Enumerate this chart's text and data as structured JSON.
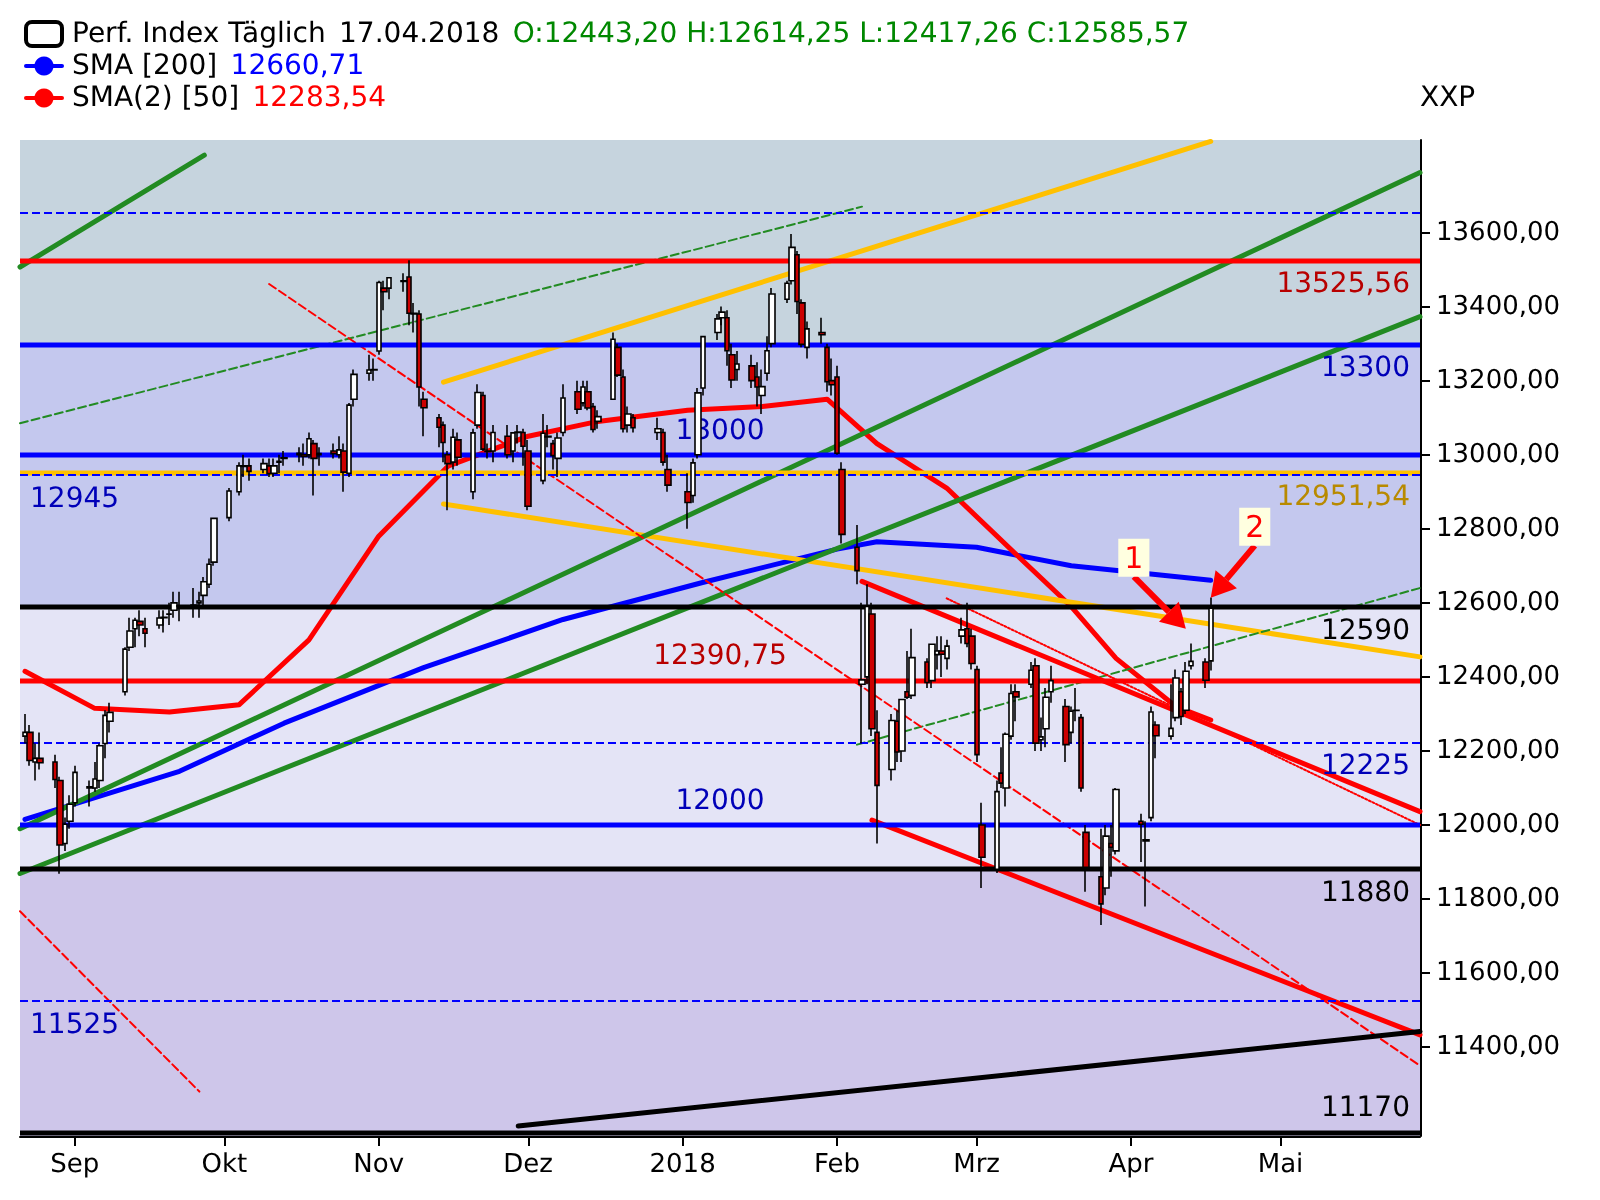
{
  "chart_data": {
    "type": "candlestick",
    "ylabel": "XXP",
    "legend": "top left",
    "annotations": [
      "17.04.2018",
      "O:12443,20 H:12614,25 L:12417,26 C:12585,57",
      "12660,71",
      "12283,54",
      {
        "text": "1",
        "x": "2018-04-12",
        "y": 12530
      },
      {
        "text": "2",
        "x": "2018-04-17",
        "y": 12614
      }
    ],
    "xlim": [
      "2017-08-21",
      "2018-05-29"
    ],
    "xticks": [
      {
        "value": "2017-09-01",
        "label": "Sep"
      },
      {
        "value": "2017-10-01",
        "label": "Okt"
      },
      {
        "value": "2017-11-01",
        "label": "Nov"
      },
      {
        "value": "2017-12-01",
        "label": "Dez"
      },
      {
        "value": "2018-01-01",
        "label": "2018"
      },
      {
        "value": "2018-02-01",
        "label": "Feb"
      },
      {
        "value": "2018-03-01",
        "label": "Mrz"
      },
      {
        "value": "2018-04-01",
        "label": "Apr"
      },
      {
        "value": "2018-05-01",
        "label": "Mai"
      }
    ],
    "ylim": [
      11160,
      13850
    ],
    "yticks": [
      {
        "value": 11400,
        "label": "11400,00"
      },
      {
        "value": 11600,
        "label": "11600,00"
      },
      {
        "value": 11800,
        "label": "11800,00"
      },
      {
        "value": 12000,
        "label": "12000,00"
      },
      {
        "value": 12200,
        "label": "12200,00"
      },
      {
        "value": 12400,
        "label": "12400,00"
      },
      {
        "value": 12600,
        "label": "12600,00"
      },
      {
        "value": 12800,
        "label": "12800,00"
      },
      {
        "value": 13000,
        "label": "13000,00"
      },
      {
        "value": 13200,
        "label": "13200,00"
      },
      {
        "value": 13400,
        "label": "13400,00"
      },
      {
        "value": 13600,
        "label": "13600,00"
      }
    ],
    "bands": [
      {
        "axis": "y",
        "from": 13300,
        "to": 13850,
        "color": "#c6d4de"
      },
      {
        "axis": "y",
        "from": 12590,
        "to": 13300,
        "color": "#c4c8ee"
      },
      {
        "axis": "y",
        "from": 11880,
        "to": 12590,
        "color": "#e4e4f6"
      },
      {
        "axis": "y",
        "from": 11160,
        "to": 11880,
        "color": "#cec6ea"
      }
    ],
    "ref_lines": [
      {
        "axis": "y",
        "value": 13655,
        "label": null,
        "color": "#0000ff",
        "line_style": "dashed"
      },
      {
        "axis": "y",
        "value": 13525.56,
        "label": "13525,56",
        "color": "#ff0000",
        "line_style": "solid"
      },
      {
        "axis": "y",
        "value": 13300,
        "label": "13300",
        "color": "#0000ff",
        "line_style": "solid"
      },
      {
        "axis": "y",
        "value": 13000,
        "label": "13000",
        "color": "#0000ff",
        "line_style": "solid"
      },
      {
        "axis": "y",
        "value": 12951.54,
        "label": "12951,54",
        "color": "#ffc000",
        "line_style": "solid"
      },
      {
        "axis": "y",
        "value": 12945,
        "label": "12945",
        "color": "#0000ff",
        "line_style": "dashed"
      },
      {
        "axis": "y",
        "value": 12590,
        "label": "12590",
        "color": "#000000",
        "line_style": "solid"
      },
      {
        "axis": "y",
        "value": 12390.75,
        "label": "12390,75",
        "color": "#ff0000",
        "line_style": "solid"
      },
      {
        "axis": "y",
        "value": 12225,
        "label": "12225",
        "color": "#0000ff",
        "line_style": "dashed"
      },
      {
        "axis": "y",
        "value": 12000,
        "label": "12000",
        "color": "#0000ff",
        "line_style": "solid"
      },
      {
        "axis": "y",
        "value": 11880,
        "label": "11880",
        "color": "#000000",
        "line_style": "solid"
      },
      {
        "axis": "y",
        "value": 11525,
        "label": "11525",
        "color": "#0000ff",
        "line_style": "dashed"
      },
      {
        "axis": "y",
        "value": 11170,
        "label": "11170",
        "color": "#000000",
        "line_style": "solid"
      }
    ],
    "series": [
      {
        "type": "candlestick",
        "name": "Perf. Index Täglich",
        "colors": [
          "#ffffff",
          "#cc0000",
          "#ffffff",
          "#cc0000",
          "#cc0000",
          "#cc0000",
          "#ffffff",
          "#ffffff",
          "#ffffff",
          "#ffffff",
          "#ffffff",
          "#ffffff",
          "#ffffff",
          "#ffffff",
          "#ffffff",
          "#ffffff",
          "#ffffff",
          "#cc0000",
          "#cc0000",
          "#ffffff",
          "#ffffff",
          "#cc0000",
          "#ffffff",
          "#ffffff",
          "#ffffff",
          "#ffffff",
          "#ffffff",
          "#ffffff",
          "#ffffff",
          "#ffffff",
          "#ffffff",
          "#cc0000",
          "#cc0000",
          "#ffffff",
          "#cc0000",
          "#ffffff",
          "#ffffff",
          "#ffffff",
          "#ffffff",
          "#cc0000",
          "#ffffff",
          "#cc0000",
          "#ffffff",
          "#cc0000",
          "#ffffff",
          "#cc0000",
          "#ffffff",
          "#ffffff",
          "#ffffff",
          "#cc0000",
          "#ffffff",
          "#cc0000",
          "#ffffff",
          "#cc0000",
          "#cc0000",
          "#ffffff",
          "#cc0000",
          "#cc0000",
          "#cc0000",
          "#cc0000",
          "#cc0000",
          "#ffffff",
          "#cc0000",
          "#ffffff",
          "#ffffff",
          "#cc0000",
          "#cc0000",
          "#ffffff",
          "#cc0000",
          "#ffffff",
          "#ffffff",
          "#cc0000",
          "#cc0000",
          "#ffffff",
          "#cc0000",
          "#cc0000",
          "#ffffff",
          "#ffffff",
          "#cc0000",
          "#ffffff",
          "#cc0000",
          "#cc0000",
          "#ffffff",
          "#ffffff",
          "#cc0000",
          "#cc0000",
          "#ffffff",
          "#cc0000",
          "#ffffff",
          "#cc0000",
          "#cc0000",
          "#cc0000",
          "#ffffff",
          "#ffffff",
          "#ffffff",
          "#ffffff",
          "#ffffff",
          "#cc0000",
          "#cc0000",
          "#ffffff",
          "#cc0000",
          "#cc0000",
          "#ffffff",
          "#ffffff",
          "#ffffff",
          "#ffffff",
          "#ffffff",
          "#cc0000",
          "#cc0000",
          "#ffffff",
          "#cc0000",
          "#cc0000",
          "#cc0000",
          "#cc0000",
          "#cc0000",
          "#cc0000",
          "#ffffff",
          "#ffffff",
          "#cc0000",
          "#cc0000",
          "#ffffff",
          "#cc0000",
          "#ffffff",
          "#cc0000",
          "#ffffff",
          "#cc0000",
          "#ffffff",
          "#ffffff",
          "#cc0000",
          "#ffffff",
          "#ffffff",
          "#cc0000",
          "#cc0000",
          "#cc0000",
          "#cc0000",
          "#ffffff",
          "#cc0000",
          "#ffffff",
          "#ffffff",
          "#cc0000",
          "#ffffff",
          "#cc0000",
          "#ffffff",
          "#ffffff",
          "#ffffff",
          "#cc0000",
          "#ffffff",
          "#cc0000",
          "#cc0000",
          "#cc0000",
          "#cc0000",
          "#ffffff",
          "#cc0000",
          "#ffffff",
          "#cc0000",
          "#cc0000",
          "#ffffff",
          "#cc0000",
          "#ffffff",
          "#ffffff",
          "#cc0000",
          "#ffffff",
          "#ffffff",
          "#cc0000",
          "#ffffff"
        ],
        "x": [
          "2017-08-22",
          "2017-08-23",
          "2017-08-24",
          "2017-08-25",
          "2017-08-28",
          "2017-08-29",
          "2017-08-30",
          "2017-08-31",
          "2017-09-01",
          "2017-09-04",
          "2017-09-05",
          "2017-09-06",
          "2017-09-07",
          "2017-09-08",
          "2017-09-11",
          "2017-09-12",
          "2017-09-13",
          "2017-09-14",
          "2017-09-15",
          "2017-09-18",
          "2017-09-19",
          "2017-09-20",
          "2017-09-21",
          "2017-09-22",
          "2017-09-25",
          "2017-09-26",
          "2017-09-27",
          "2017-09-28",
          "2017-09-29",
          "2017-10-02",
          "2017-10-04",
          "2017-10-05",
          "2017-10-06",
          "2017-10-09",
          "2017-10-10",
          "2017-10-11",
          "2017-10-12",
          "2017-10-13",
          "2017-10-16",
          "2017-10-17",
          "2017-10-18",
          "2017-10-19",
          "2017-10-20",
          "2017-10-23",
          "2017-10-24",
          "2017-10-25",
          "2017-10-26",
          "2017-10-27",
          "2017-10-30",
          "2017-10-31",
          "2017-11-01",
          "2017-11-02",
          "2017-11-03",
          "2017-11-06",
          "2017-11-07",
          "2017-11-08",
          "2017-11-09",
          "2017-11-10",
          "2017-11-13",
          "2017-11-14",
          "2017-11-15",
          "2017-11-16",
          "2017-11-17",
          "2017-11-20",
          "2017-11-21",
          "2017-11-22",
          "2017-11-23",
          "2017-11-24",
          "2017-11-27",
          "2017-11-28",
          "2017-11-29",
          "2017-11-30",
          "2017-12-01",
          "2017-12-04",
          "2017-12-05",
          "2017-12-06",
          "2017-12-07",
          "2017-12-08",
          "2017-12-11",
          "2017-12-12",
          "2017-12-13",
          "2017-12-14",
          "2017-12-15",
          "2017-12-18",
          "2017-12-19",
          "2017-12-20",
          "2017-12-21",
          "2017-12-22",
          "2017-12-27",
          "2017-12-28",
          "2017-12-29",
          "2018-01-02",
          "2018-01-03",
          "2018-01-04",
          "2018-01-05",
          "2018-01-08",
          "2018-01-09",
          "2018-01-10",
          "2018-01-11",
          "2018-01-12",
          "2018-01-15",
          "2018-01-16",
          "2018-01-17",
          "2018-01-18",
          "2018-01-19",
          "2018-01-22",
          "2018-01-23",
          "2018-01-24",
          "2018-01-25",
          "2018-01-26",
          "2018-01-29",
          "2018-01-30",
          "2018-01-31",
          "2018-02-01",
          "2018-02-02",
          "2018-02-05",
          "2018-02-06",
          "2018-02-07",
          "2018-02-08",
          "2018-02-09",
          "2018-02-12",
          "2018-02-13",
          "2018-02-14",
          "2018-02-15",
          "2018-02-16",
          "2018-02-19",
          "2018-02-20",
          "2018-02-21",
          "2018-02-22",
          "2018-02-23",
          "2018-02-26",
          "2018-02-27",
          "2018-02-28",
          "2018-03-01",
          "2018-03-02",
          "2018-03-05",
          "2018-03-06",
          "2018-03-07",
          "2018-03-08",
          "2018-03-09",
          "2018-03-12",
          "2018-03-13",
          "2018-03-14",
          "2018-03-15",
          "2018-03-16",
          "2018-03-19",
          "2018-03-20",
          "2018-03-21",
          "2018-03-22",
          "2018-03-23",
          "2018-03-26",
          "2018-03-27",
          "2018-03-28",
          "2018-03-29",
          "2018-04-03",
          "2018-04-04",
          "2018-04-05",
          "2018-04-06",
          "2018-04-09",
          "2018-04-10",
          "2018-04-11",
          "2018-04-12",
          "2018-04-13",
          "2018-04-16",
          "2018-04-17"
        ],
        "ohlc": [
          [
            12240,
            12300,
            12220,
            12250
          ],
          [
            12250,
            12270,
            12160,
            12174
          ],
          [
            12170,
            12220,
            12120,
            12180
          ],
          [
            12180,
            12250,
            12150,
            12168
          ],
          [
            12170,
            12190,
            12100,
            12123
          ],
          [
            12120,
            12130,
            11868,
            11946
          ],
          [
            11950,
            12020,
            11930,
            12002
          ],
          [
            12010,
            12080,
            11990,
            12056
          ],
          [
            12060,
            12160,
            12050,
            12142
          ],
          [
            12100,
            12120,
            12050,
            12103
          ],
          [
            12100,
            12170,
            12090,
            12124
          ],
          [
            12120,
            12220,
            12100,
            12214
          ],
          [
            12220,
            12310,
            12180,
            12296
          ],
          [
            12280,
            12330,
            12250,
            12304
          ],
          [
            12360,
            12480,
            12350,
            12475
          ],
          [
            12480,
            12560,
            12470,
            12524
          ],
          [
            12530,
            12560,
            12480,
            12553
          ],
          [
            12550,
            12580,
            12510,
            12540
          ],
          [
            12530,
            12560,
            12480,
            12518
          ],
          [
            12540,
            12580,
            12530,
            12559
          ],
          [
            12560,
            12580,
            12520,
            12561
          ],
          [
            12570,
            12600,
            12540,
            12569
          ],
          [
            12580,
            12630,
            12560,
            12600
          ],
          [
            12590,
            12630,
            12550,
            12592
          ],
          [
            12590,
            12640,
            12560,
            12594
          ],
          [
            12600,
            12630,
            12560,
            12605
          ],
          [
            12620,
            12670,
            12590,
            12657
          ],
          [
            12650,
            12720,
            12640,
            12704
          ],
          [
            12710,
            12830,
            12700,
            12828
          ],
          [
            12830,
            12910,
            12820,
            12902
          ],
          [
            12900,
            12980,
            12890,
            12970
          ],
          [
            12970,
            13000,
            12940,
            12968
          ],
          [
            12970,
            12990,
            12930,
            12955
          ],
          [
            12960,
            12990,
            12950,
            12976
          ],
          [
            12970,
            12990,
            12940,
            12949
          ],
          [
            12950,
            12990,
            12940,
            12970
          ],
          [
            12980,
            13000,
            12950,
            12982
          ],
          [
            12990,
            13010,
            12970,
            12992
          ],
          [
            13000,
            13020,
            12980,
            13004
          ],
          [
            13000,
            13030,
            12970,
            12995
          ],
          [
            13000,
            13060,
            12990,
            13043
          ],
          [
            13030,
            13040,
            12890,
            12990
          ],
          [
            13000,
            13020,
            12970,
            13003
          ],
          [
            13010,
            13030,
            12990,
            13003
          ],
          [
            13000,
            13050,
            12990,
            13013
          ],
          [
            13010,
            13030,
            12900,
            12953
          ],
          [
            12950,
            13140,
            12940,
            13134
          ],
          [
            13150,
            13230,
            13130,
            13217
          ],
          [
            13220,
            13270,
            13200,
            13229
          ],
          [
            13230,
            13260,
            13200,
            13229
          ],
          [
            13280,
            13470,
            13270,
            13465
          ],
          [
            13450,
            13470,
            13390,
            13440
          ],
          [
            13450,
            13480,
            13420,
            13478
          ],
          [
            13470,
            13490,
            13440,
            13468
          ],
          [
            13480,
            13525,
            13350,
            13382
          ],
          [
            13380,
            13410,
            13330,
            13382
          ],
          [
            13380,
            13390,
            13130,
            13183
          ],
          [
            13150,
            13170,
            13050,
            13127
          ],
          [
            13100,
            13110,
            13020,
            13074
          ],
          [
            13080,
            13090,
            12980,
            13033
          ],
          [
            13000,
            13010,
            12850,
            12976
          ],
          [
            12980,
            13070,
            12960,
            13047
          ],
          [
            13040,
            13060,
            12970,
            12993
          ],
          [
            12900,
            13070,
            12880,
            13059
          ],
          [
            13080,
            13190,
            13070,
            13168
          ],
          [
            13160,
            13170,
            13010,
            13015
          ],
          [
            13010,
            13030,
            12990,
            13009
          ],
          [
            13010,
            13080,
            12980,
            13060
          ],
          [
            13050,
            13080,
            12990,
            13000
          ],
          [
            13010,
            13060,
            12980,
            13059
          ],
          [
            13060,
            13080,
            13030,
            13061
          ],
          [
            13060,
            13070,
            12970,
            13023
          ],
          [
            13010,
            13040,
            12850,
            12861
          ],
          [
            12930,
            13110,
            12920,
            13058
          ],
          [
            13050,
            13080,
            13020,
            13048
          ],
          [
            13030,
            13040,
            12960,
            12998
          ],
          [
            12990,
            13060,
            12940,
            13045
          ],
          [
            13060,
            13190,
            13050,
            13153
          ],
          [
            13170,
            13200,
            13110,
            13123
          ],
          [
            13140,
            13200,
            13130,
            13183
          ],
          [
            13170,
            13200,
            13120,
            13126
          ],
          [
            13130,
            13140,
            13060,
            13068
          ],
          [
            13090,
            13120,
            13070,
            13103
          ],
          [
            13150,
            13330,
            13150,
            13312
          ],
          [
            13290,
            13300,
            13210,
            13215
          ],
          [
            13210,
            13230,
            13060,
            13070
          ],
          [
            13080,
            13130,
            13060,
            13110
          ],
          [
            13100,
            13110,
            13060,
            13073
          ],
          [
            13060,
            13100,
            13040,
            13070
          ],
          [
            13060,
            13070,
            12970,
            12980
          ],
          [
            12960,
            13000,
            12900,
            12918
          ],
          [
            12900,
            12950,
            12800,
            12871
          ],
          [
            12890,
            12990,
            12870,
            12978
          ],
          [
            13000,
            13180,
            12990,
            13167
          ],
          [
            13180,
            13320,
            13160,
            13319
          ],
          [
            13330,
            13380,
            13310,
            13367
          ],
          [
            13370,
            13400,
            13350,
            13385
          ],
          [
            13370,
            13390,
            13240,
            13281
          ],
          [
            13270,
            13300,
            13180,
            13202
          ],
          [
            13230,
            13280,
            13200,
            13245
          ],
          [
            13240,
            13270,
            13180,
            13200
          ],
          [
            13210,
            13250,
            13130,
            13183
          ],
          [
            13160,
            13230,
            13110,
            13184
          ],
          [
            13220,
            13320,
            13200,
            13281
          ],
          [
            13300,
            13450,
            13290,
            13434
          ],
          [
            13420,
            13470,
            13410,
            13463
          ],
          [
            13470,
            13596,
            13460,
            13560
          ],
          [
            13540,
            13550,
            13380,
            13414
          ],
          [
            13410,
            13420,
            13290,
            13298
          ],
          [
            13290,
            13360,
            13260,
            13340
          ],
          [
            13330,
            13370,
            13300,
            13324
          ],
          [
            13290,
            13300,
            13170,
            13197
          ],
          [
            13200,
            13260,
            13160,
            13189
          ],
          [
            13210,
            13240,
            13000,
            13004
          ],
          [
            12960,
            12980,
            12760,
            12785
          ],
          [
            12750,
            12810,
            12650,
            12687
          ],
          [
            12380,
            12600,
            12220,
            12392
          ],
          [
            12400,
            12650,
            12380,
            12590
          ],
          [
            12570,
            12600,
            12240,
            12260
          ],
          [
            12250,
            12310,
            11950,
            12107
          ],
          [
            12150,
            12300,
            12120,
            12282
          ],
          [
            12280,
            12310,
            12170,
            12197
          ],
          [
            12200,
            12340,
            12170,
            12339
          ],
          [
            12360,
            12470,
            12340,
            12345
          ],
          [
            12350,
            12530,
            12340,
            12452
          ],
          [
            12440,
            12450,
            12370,
            12385
          ],
          [
            12390,
            12490,
            12370,
            12488
          ],
          [
            12460,
            12510,
            12420,
            12470
          ],
          [
            12470,
            12510,
            12400,
            12461
          ],
          [
            12450,
            12500,
            12420,
            12483
          ],
          [
            12510,
            12560,
            12490,
            12527
          ],
          [
            12530,
            12600,
            12480,
            12490
          ],
          [
            12510,
            12530,
            12420,
            12436
          ],
          [
            12420,
            12430,
            12170,
            12190
          ],
          [
            12000,
            12060,
            11830,
            11913
          ],
          [
            11880,
            12120,
            11870,
            12090
          ],
          [
            12140,
            12210,
            12100,
            12113
          ],
          [
            12100,
            12250,
            12050,
            12245
          ],
          [
            12240,
            12380,
            12230,
            12355
          ],
          [
            12360,
            12380,
            12280,
            12346
          ],
          [
            12380,
            12440,
            12370,
            12418
          ],
          [
            12430,
            12450,
            12200,
            12221
          ],
          [
            12230,
            12290,
            12200,
            12238
          ],
          [
            12260,
            12370,
            12210,
            12345
          ],
          [
            12360,
            12430,
            12330,
            12390
          ],
          [
            12320,
            12340,
            12170,
            12217
          ],
          [
            12250,
            12320,
            12220,
            12307
          ],
          [
            12310,
            12370,
            12280,
            12309
          ],
          [
            12290,
            12300,
            12090,
            12100
          ],
          [
            11980,
            12000,
            11820,
            11886
          ],
          [
            11860,
            11990,
            11730,
            11787
          ],
          [
            11830,
            12000,
            11810,
            11970
          ],
          [
            11950,
            12000,
            11860,
            11940
          ],
          [
            11930,
            12100,
            11920,
            12096
          ],
          [
            12010,
            12030,
            11900,
            12002
          ],
          [
            11960,
            12010,
            11780,
            11957
          ],
          [
            12020,
            12320,
            12010,
            12305
          ],
          [
            12270,
            12280,
            12180,
            12241
          ],
          [
            12240,
            12380,
            12230,
            12261
          ],
          [
            12290,
            12420,
            12280,
            12397
          ],
          [
            12360,
            12370,
            12270,
            12293
          ],
          [
            12310,
            12440,
            12300,
            12415
          ],
          [
            12430,
            12490,
            12420,
            12442
          ],
          [
            12440,
            12450,
            12370,
            12391
          ],
          [
            12443.2,
            12614.25,
            12417.26,
            12585.57
          ]
        ]
      },
      {
        "type": "line",
        "name": "SMA [200]",
        "color": "#0000ff",
        "x": [
          "2017-08-22",
          "2017-09-22",
          "2017-10-13",
          "2017-11-10",
          "2017-12-08",
          "2018-01-05",
          "2018-02-01",
          "2018-02-09",
          "2018-03-01",
          "2018-03-20",
          "2018-04-17"
        ],
        "values": [
          12015,
          12145,
          12275,
          12425,
          12555,
          12655,
          12745,
          12765,
          12750,
          12700,
          12660.71
        ]
      },
      {
        "type": "line",
        "name": "SMA(2) [50]",
        "color": "#ff0000",
        "x": [
          "2017-08-22",
          "2017-09-05",
          "2017-09-20",
          "2017-10-04",
          "2017-10-18",
          "2017-11-01",
          "2017-11-15",
          "2017-12-01",
          "2017-12-15",
          "2018-01-02",
          "2018-01-17",
          "2018-01-30",
          "2018-02-09",
          "2018-02-23",
          "2018-03-09",
          "2018-03-20",
          "2018-03-29",
          "2018-04-10",
          "2018-04-17"
        ],
        "values": [
          12415,
          12315,
          12305,
          12325,
          12500,
          12780,
          12970,
          13050,
          13090,
          13120,
          13130,
          13150,
          13030,
          12910,
          12730,
          12590,
          12450,
          12320,
          12283.54
        ]
      },
      {
        "type": "line",
        "color": "#ffc000",
        "x": [
          "2017-11-14",
          "2018-04-17"
        ],
        "values": [
          13196,
          13846
        ]
      },
      {
        "type": "line",
        "color": "#ffc000",
        "x": [
          "2017-11-14",
          "2018-05-29"
        ],
        "values": [
          12867,
          12454
        ]
      },
      {
        "type": "line",
        "color": "#228b22",
        "x": [
          "2017-08-21",
          "2018-05-29"
        ],
        "values": [
          11990,
          13762
        ]
      },
      {
        "type": "line",
        "color": "#228b22",
        "x": [
          "2017-08-21",
          "2018-05-29"
        ],
        "values": [
          11869,
          13373
        ]
      },
      {
        "type": "line",
        "color": "#228b22",
        "x": [
          "2017-08-21",
          "2017-09-27"
        ],
        "values": [
          13507,
          13809
        ]
      },
      {
        "type": "line",
        "color": "#228b22",
        "line_style": "dashed",
        "x": [
          "2017-08-21",
          "2018-02-06"
        ],
        "values": [
          13085,
          13670
        ]
      },
      {
        "type": "line",
        "color": "#228b22",
        "line_style": "dashed",
        "x": [
          "2018-02-05",
          "2018-05-29"
        ],
        "values": [
          12217,
          12640
        ]
      },
      {
        "type": "line",
        "color": "#ff0000",
        "x": [
          "2018-02-06",
          "2018-05-29"
        ],
        "values": [
          12658,
          12036
        ]
      },
      {
        "type": "line",
        "color": "#ff0000",
        "x": [
          "2018-02-08",
          "2018-05-29"
        ],
        "values": [
          12013,
          11433
        ]
      },
      {
        "type": "line",
        "color": "#ff0000",
        "line_style": "dotted",
        "x": [
          "2018-02-23",
          "2018-05-29"
        ],
        "values": [
          12612,
          12000
        ]
      },
      {
        "type": "line",
        "color": "#ff0000",
        "line_style": "dashed",
        "x": [
          "2017-10-10",
          "2018-05-29"
        ],
        "values": [
          13461,
          11350
        ]
      },
      {
        "type": "line",
        "color": "#ff0000",
        "line_style": "dashed",
        "x": [
          "2017-08-21",
          "2017-09-26"
        ],
        "values": [
          11767,
          11280
        ]
      },
      {
        "type": "line",
        "color": "#000000",
        "x": [
          "2017-11-29",
          "2018-05-29"
        ],
        "values": [
          11187,
          11442
        ]
      }
    ]
  }
}
